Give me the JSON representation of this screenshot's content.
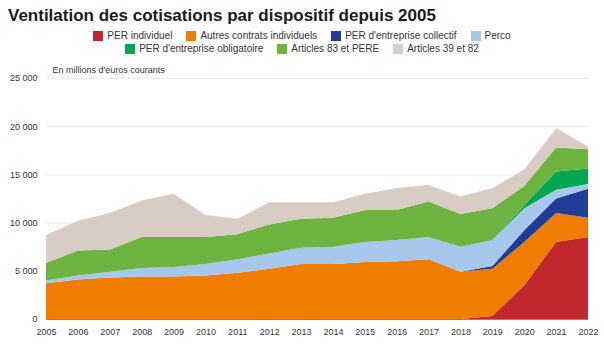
{
  "chart_data": {
    "type": "area",
    "title": "Ventilation des cotisations par dispositif depuis 2005",
    "y_label": "En millions d'euros courants",
    "stacked": true,
    "grid": true,
    "legend": "top",
    "x": [
      2005,
      2006,
      2007,
      2008,
      2009,
      2010,
      2011,
      2012,
      2013,
      2014,
      2015,
      2016,
      2017,
      2018,
      2019,
      2020,
      2021,
      2022
    ],
    "xlim": [
      2005,
      2022
    ],
    "xticks": [
      2005,
      2006,
      2007,
      2008,
      2009,
      2010,
      2011,
      2012,
      2013,
      2014,
      2015,
      2016,
      2017,
      2018,
      2019,
      2020,
      2021,
      2022
    ],
    "ylim": [
      0,
      25000
    ],
    "yticks": [
      0,
      {
        "value": 5000,
        "label": "5 000"
      },
      {
        "value": 10000,
        "label": "10 000"
      },
      {
        "value": 15000,
        "label": "15 000"
      },
      {
        "value": 20000,
        "label": "20 000"
      },
      {
        "value": 25000,
        "label": "25 000"
      }
    ],
    "series": [
      {
        "name": "PER individuel",
        "color": "#c0282d",
        "values": [
          0,
          0,
          0,
          0,
          0,
          0,
          0,
          0,
          0,
          0,
          0,
          0,
          0,
          0,
          300,
          3500,
          8000,
          8500
        ]
      },
      {
        "name": "Autres contrats individuels",
        "color": "#f07d00",
        "values": [
          3700,
          4100,
          4300,
          4400,
          4400,
          4500,
          4800,
          5200,
          5700,
          5700,
          5900,
          6000,
          6200,
          4900,
          4900,
          4500,
          3000,
          2000
        ]
      },
      {
        "name": "PER d'entreprise collectif",
        "color": "#1f3c99",
        "values": [
          0,
          0,
          0,
          0,
          0,
          0,
          0,
          0,
          0,
          0,
          0,
          0,
          0,
          0,
          300,
          1200,
          1500,
          3000
        ]
      },
      {
        "name": "Perco",
        "color": "#a6c8ec",
        "values": [
          300,
          400,
          600,
          900,
          1000,
          1200,
          1400,
          1600,
          1700,
          1800,
          2100,
          2200,
          2300,
          2600,
          2700,
          2300,
          900,
          500
        ]
      },
      {
        "name": "PER d'entreprise obligatoire",
        "color": "#00a651",
        "values": [
          0,
          0,
          0,
          0,
          0,
          0,
          0,
          0,
          0,
          0,
          0,
          0,
          0,
          0,
          0,
          300,
          1900,
          1600
        ]
      },
      {
        "name": "Articles 83 et PERE",
        "color": "#6cb33f",
        "values": [
          1800,
          2600,
          2300,
          3200,
          3100,
          2800,
          2600,
          3000,
          3000,
          3000,
          3300,
          3100,
          3700,
          3400,
          3300,
          2000,
          2500,
          2000
        ]
      },
      {
        "name": "Articles 39 et 82",
        "color": "#d9ccc5",
        "values": [
          2900,
          3100,
          3800,
          3800,
          4500,
          2300,
          1600,
          2300,
          1700,
          1600,
          1700,
          2300,
          1700,
          1800,
          2100,
          1700,
          2000,
          300
        ]
      }
    ]
  }
}
